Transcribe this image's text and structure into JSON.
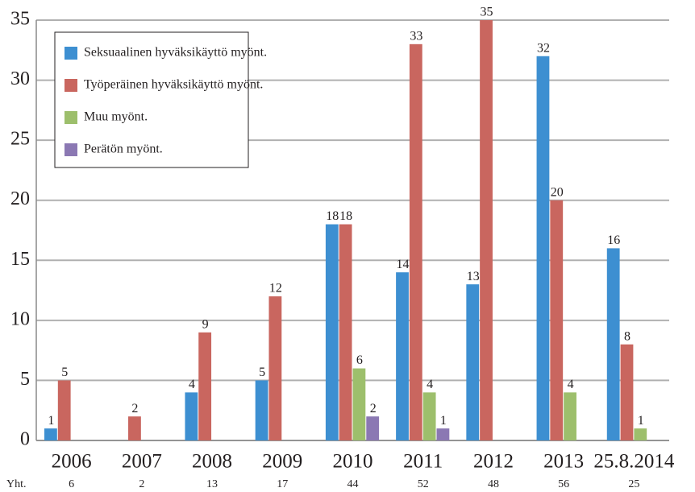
{
  "chart_data": {
    "type": "bar",
    "categories": [
      "2006",
      "2007",
      "2008",
      "2009",
      "2010",
      "2011",
      "2012",
      "2013",
      "25.8.2014"
    ],
    "series": [
      {
        "name": "Seksuaalinen hyväksikäyttö myönt.",
        "color": "#3d8fd1",
        "values": [
          1,
          null,
          4,
          5,
          18,
          14,
          13,
          32,
          16
        ]
      },
      {
        "name": "Työperäinen hyväksikäyttö myönt.",
        "color": "#c9665f",
        "values": [
          5,
          2,
          9,
          12,
          18,
          33,
          35,
          20,
          8
        ]
      },
      {
        "name": "Muu myönt.",
        "color": "#9dbf6c",
        "values": [
          null,
          null,
          null,
          null,
          6,
          4,
          null,
          4,
          1
        ]
      },
      {
        "name": "Perätön myönt.",
        "color": "#8b78b3",
        "values": [
          null,
          null,
          null,
          null,
          2,
          1,
          null,
          null,
          null
        ]
      }
    ],
    "totals_label": "Yht.",
    "totals": [
      6,
      2,
      13,
      17,
      44,
      52,
      48,
      56,
      25
    ],
    "ylim": [
      0,
      35
    ],
    "yticks": [
      0,
      5,
      10,
      15,
      20,
      25,
      30,
      35
    ],
    "grid": true,
    "legend": "upper left"
  }
}
